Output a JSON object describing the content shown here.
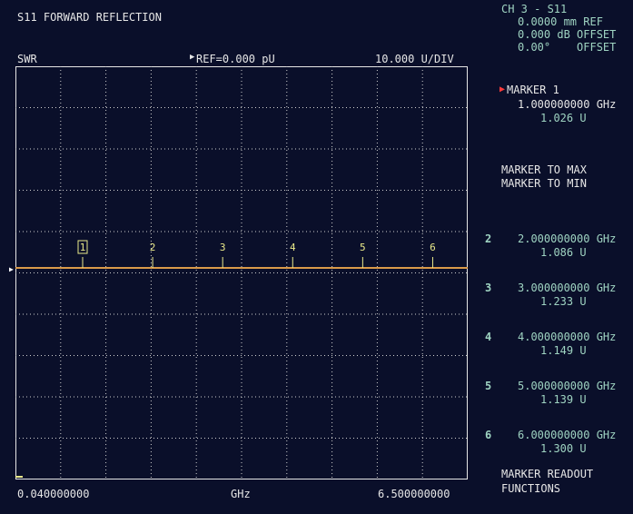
{
  "header": {
    "title": "S11 FORWARD REFLECTION",
    "format": "SWR",
    "ref": "REF=0.000 pU",
    "scale": "10.000 U/DIV"
  },
  "channel": {
    "line1": "CH 3 - S11",
    "line2": "0.0000 mm REF",
    "line3": "0.000 dB OFFSET",
    "line4": "0.00°    OFFSET"
  },
  "axis": {
    "start": "0.040000000",
    "unit": "GHz",
    "stop": "6.500000000"
  },
  "menu": {
    "active_marker_label": "MARKER 1",
    "active_marker_freq": "1.000000000 GHz",
    "active_marker_value": "1.026 U",
    "marker_to_max": "MARKER TO MAX",
    "marker_to_min": "MARKER TO MIN",
    "readout_line1": "MARKER READOUT",
    "readout_line2": "FUNCTIONS"
  },
  "markers": [
    {
      "id": "2",
      "freq": "2.000000000 GHz",
      "value": "1.086 U"
    },
    {
      "id": "3",
      "freq": "3.000000000 GHz",
      "value": "1.233 U"
    },
    {
      "id": "4",
      "freq": "4.000000000 GHz",
      "value": "1.149 U"
    },
    {
      "id": "5",
      "freq": "5.000000000 GHz",
      "value": "1.139 U"
    },
    {
      "id": "6",
      "freq": "6.000000000 GHz",
      "value": "1.300 U"
    }
  ],
  "plot_markers": [
    "1",
    "2",
    "3",
    "4",
    "5",
    "6"
  ],
  "colors": {
    "trace": "#d99a4a",
    "grid": "#cfcfcf",
    "marker": "#e9e98a",
    "active": "#ff3b3b"
  }
}
